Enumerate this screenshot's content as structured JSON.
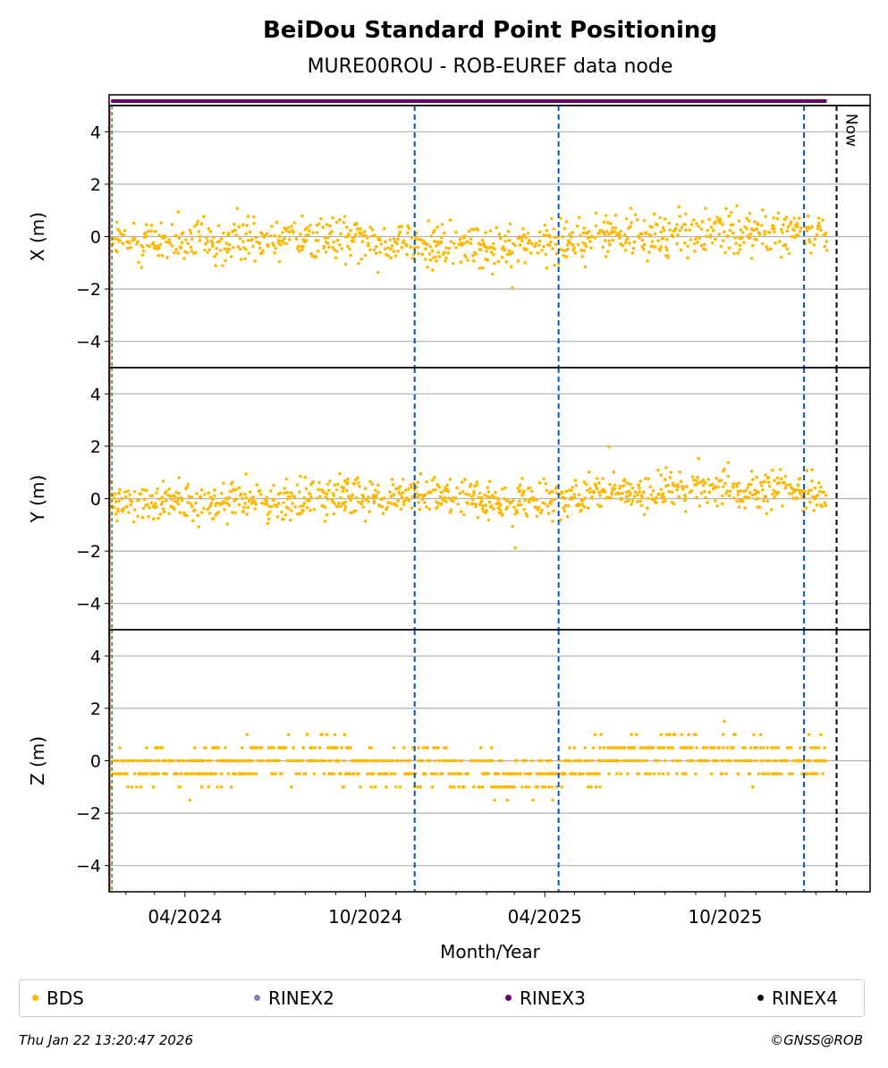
{
  "chart_data": {
    "type": "scatter",
    "title": "BeiDou Standard Point Positioning",
    "subtitle": "MURE00ROU - ROB-EUREF data node",
    "xlabel": "Month/Year",
    "x_ticks": [
      "04/2024",
      "10/2024",
      "04/2025",
      "10/2025"
    ],
    "x_range": [
      "2024-01-15",
      "2026-02-25"
    ],
    "now_label": "Now",
    "now_date": "2026-01-22",
    "vertical_markers": {
      "red_green_start": "2024-01-17",
      "blue_dashed": [
        "2024-11-20",
        "2025-04-15",
        "2025-12-20"
      ]
    },
    "availability_bar": {
      "series": "RINEX3",
      "from": "2024-01-17",
      "to": "2026-01-12",
      "color": "#660066"
    },
    "bds_color": "#ffb800",
    "panels": [
      {
        "ylabel": "X (m)",
        "ylim": [
          -5,
          5
        ],
        "y_ticks": [
          "4",
          "2",
          "0",
          "−2",
          "−4"
        ],
        "anchors": [
          [
            "2024-01-17",
            -0.3
          ],
          [
            "2024-03-01",
            -0.2
          ],
          [
            "2024-05-01",
            -0.3
          ],
          [
            "2024-07-01",
            0.1
          ],
          [
            "2024-09-01",
            0.0
          ],
          [
            "2024-11-01",
            -0.3
          ],
          [
            "2024-12-15",
            -0.3
          ],
          [
            "2025-02-01",
            -0.4
          ],
          [
            "2025-04-01",
            -0.3
          ],
          [
            "2025-06-01",
            0.1
          ],
          [
            "2025-08-01",
            0.1
          ],
          [
            "2025-10-01",
            0.2
          ],
          [
            "2025-12-01",
            0.1
          ],
          [
            "2026-01-12",
            0.1
          ]
        ],
        "spread": 0.6
      },
      {
        "ylabel": "Y (m)",
        "ylim": [
          -5,
          5
        ],
        "y_ticks": [
          "4",
          "2",
          "0",
          "−2",
          "−4"
        ],
        "anchors": [
          [
            "2024-01-17",
            -0.2
          ],
          [
            "2024-03-01",
            -0.1
          ],
          [
            "2024-05-01",
            -0.2
          ],
          [
            "2024-07-01",
            -0.1
          ],
          [
            "2024-09-01",
            0.1
          ],
          [
            "2024-11-01",
            0.1
          ],
          [
            "2024-12-15",
            0.2
          ],
          [
            "2025-02-01",
            -0.1
          ],
          [
            "2025-04-01",
            -0.1
          ],
          [
            "2025-06-01",
            0.2
          ],
          [
            "2025-08-01",
            0.3
          ],
          [
            "2025-10-01",
            0.4
          ],
          [
            "2025-12-01",
            0.3
          ],
          [
            "2026-01-12",
            0.2
          ]
        ],
        "spread": 0.5
      },
      {
        "ylabel": "Z (m)",
        "ylim": [
          -5,
          5
        ],
        "y_ticks": [
          "4",
          "2",
          "0",
          "−2",
          "−4"
        ],
        "anchors": [
          [
            "2024-01-17",
            -0.2
          ],
          [
            "2024-03-01",
            -0.3
          ],
          [
            "2024-05-01",
            -0.2
          ],
          [
            "2024-07-01",
            0.1
          ],
          [
            "2024-09-01",
            0.1
          ],
          [
            "2024-11-01",
            -0.3
          ],
          [
            "2024-12-15",
            -0.2
          ],
          [
            "2025-02-01",
            -0.5
          ],
          [
            "2025-04-01",
            -0.5
          ],
          [
            "2025-06-01",
            0.2
          ],
          [
            "2025-08-01",
            0.2
          ],
          [
            "2025-10-01",
            0.2
          ],
          [
            "2025-12-01",
            0.0
          ],
          [
            "2026-01-12",
            0.0
          ]
        ],
        "spread": 0.55,
        "quantum": 0.5
      }
    ],
    "legend": [
      {
        "label": "BDS",
        "color": "#ffb800"
      },
      {
        "label": "RINEX2",
        "color": "#8080c0"
      },
      {
        "label": "RINEX3",
        "color": "#660066"
      },
      {
        "label": "RINEX4",
        "color": "#1a0010"
      }
    ]
  },
  "footer": {
    "timestamp": "Thu Jan 22 13:20:47 2026",
    "copyright": "©GNSS@ROB"
  }
}
